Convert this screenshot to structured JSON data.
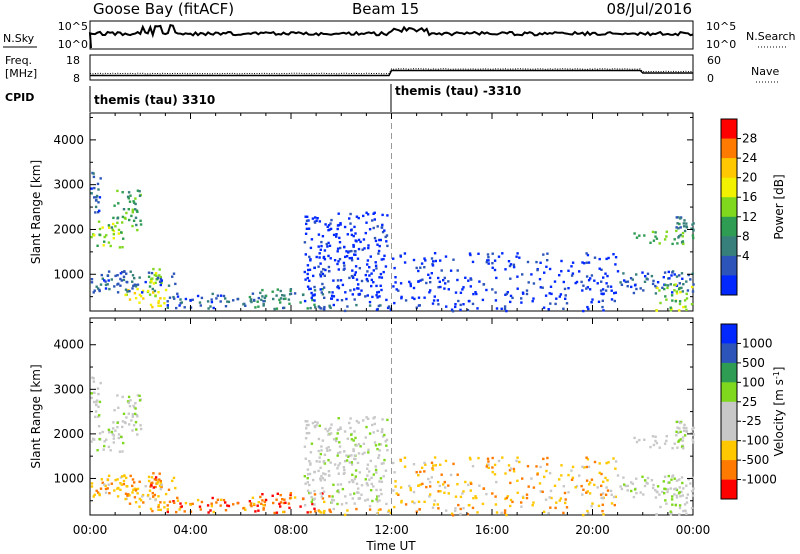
{
  "header": {
    "station": "Goose Bay (fitACF)",
    "beam": "Beam 15",
    "date": "08/Jul/2016"
  },
  "summary_panels": {
    "nsky_label": "N.Sky",
    "nsearch_label": "N.Search",
    "freq_label_line1": "Freq.",
    "freq_label_line2": "[MHz]",
    "nave_label": "Nave",
    "cpid_label": "CPID",
    "noise_ticks": [
      "10^5",
      "10^0"
    ],
    "freq_ticks": [
      "18",
      "8"
    ],
    "nave_ticks": [
      "60",
      "0"
    ],
    "cpid_segments": [
      {
        "label": "themis (tau) 3310",
        "start_hour": 0
      },
      {
        "label": "themis (tau) -3310",
        "start_hour": 12
      }
    ]
  },
  "chart_data": [
    {
      "type": "heatmap",
      "name": "power",
      "xlabel": "",
      "ylabel": "Slant Range [km]",
      "xlim": [
        0,
        24
      ],
      "ylim": [
        180,
        4600
      ],
      "yticks": [
        1000,
        2000,
        3000,
        4000
      ],
      "colorbar_label": "Power [dB]",
      "colorbar_ticks": [
        "28",
        "24",
        "20",
        "16",
        "12",
        "8",
        "4"
      ],
      "colorbar_colors": [
        "#ff0000",
        "#ff7a00",
        "#ffc800",
        "#f2f200",
        "#7fd81e",
        "#2e9c52",
        "#367f7a",
        "#2d55b9",
        "#0028ff"
      ],
      "clusters": [
        {
          "t0": 0.0,
          "t1": 1.3,
          "r0": 1600,
          "r1": 2200,
          "level": 4
        },
        {
          "t0": 0.8,
          "t1": 2.0,
          "r0": 2000,
          "r1": 2900,
          "level": 3
        },
        {
          "t0": 0.0,
          "t1": 0.4,
          "r0": 2400,
          "r1": 3300,
          "level": 1
        },
        {
          "t0": 2.3,
          "t1": 2.8,
          "r0": 750,
          "r1": 1150,
          "level": 4
        },
        {
          "t0": 1.3,
          "t1": 3.0,
          "r0": 250,
          "r1": 700,
          "level": 5
        },
        {
          "t0": 0.0,
          "t1": 3.5,
          "r0": 600,
          "r1": 1100,
          "level": 1
        },
        {
          "t0": 3.0,
          "t1": 6.0,
          "r0": 250,
          "r1": 600,
          "level": 1
        },
        {
          "t0": 6.0,
          "t1": 9.5,
          "r0": 250,
          "r1": 700,
          "level": 2
        },
        {
          "t0": 9.0,
          "t1": 12.0,
          "r0": 200,
          "r1": 350,
          "level": 1
        },
        {
          "t0": 8.5,
          "t1": 11.8,
          "r0": 400,
          "r1": 2400,
          "level": 0
        },
        {
          "t0": 12.0,
          "t1": 21.0,
          "r0": 200,
          "r1": 1500,
          "level": 0
        },
        {
          "t0": 21.5,
          "t1": 24.0,
          "r0": 1700,
          "r1": 2000,
          "level": 3
        },
        {
          "t0": 23.3,
          "t1": 24.0,
          "r0": 2000,
          "r1": 2300,
          "level": 2
        },
        {
          "t0": 21.0,
          "t1": 24.0,
          "r0": 600,
          "r1": 1100,
          "level": 1
        },
        {
          "t0": 22.5,
          "t1": 24.0,
          "r0": 200,
          "r1": 800,
          "level": 4
        }
      ]
    },
    {
      "type": "heatmap",
      "name": "velocity",
      "xlabel": "Time UT",
      "ylabel": "Slant Range [km]",
      "xlim": [
        0,
        24
      ],
      "ylim": [
        180,
        4600
      ],
      "xticks": [
        "00:00",
        "04:00",
        "08:00",
        "12:00",
        "16:00",
        "20:00",
        "00:00"
      ],
      "yticks": [
        1000,
        2000,
        3000,
        4000
      ],
      "colorbar_label": "Velocity [m s",
      "colorbar_label_sup": "-1",
      "colorbar_label_end": "]",
      "colorbar_ticks": [
        "1000",
        "500",
        "100",
        "25",
        "-25",
        "-100",
        "-500",
        "-1000"
      ],
      "colorbar_colors": [
        "#0028ff",
        "#2d55b9",
        "#2e9c52",
        "#7fd81e",
        "#c8c8c8",
        "#c8c8c8",
        "#ffc800",
        "#ff7a00",
        "#ff0000"
      ],
      "clusters": [
        {
          "t0": 0.0,
          "t1": 1.3,
          "r0": 1600,
          "r1": 2200,
          "level": 4
        },
        {
          "t0": 0.8,
          "t1": 2.0,
          "r0": 2000,
          "r1": 2900,
          "level": 4
        },
        {
          "t0": 0.0,
          "t1": 0.4,
          "r0": 2400,
          "r1": 3300,
          "level": 4
        },
        {
          "t0": 2.3,
          "t1": 2.8,
          "r0": 750,
          "r1": 1150,
          "level": 7
        },
        {
          "t0": 1.3,
          "t1": 3.0,
          "r0": 250,
          "r1": 700,
          "level": 6
        },
        {
          "t0": 0.0,
          "t1": 3.5,
          "r0": 600,
          "r1": 1100,
          "level": 6
        },
        {
          "t0": 3.0,
          "t1": 6.0,
          "r0": 250,
          "r1": 600,
          "level": 7
        },
        {
          "t0": 6.0,
          "t1": 9.5,
          "r0": 250,
          "r1": 700,
          "level": 7
        },
        {
          "t0": 9.0,
          "t1": 12.0,
          "r0": 200,
          "r1": 350,
          "level": 6
        },
        {
          "t0": 8.5,
          "t1": 11.8,
          "r0": 400,
          "r1": 2400,
          "level": 4
        },
        {
          "t0": 12.0,
          "t1": 21.0,
          "r0": 200,
          "r1": 1500,
          "level": 6
        },
        {
          "t0": 21.5,
          "t1": 24.0,
          "r0": 1700,
          "r1": 2000,
          "level": 4
        },
        {
          "t0": 23.3,
          "t1": 24.0,
          "r0": 2000,
          "r1": 2300,
          "level": 4
        },
        {
          "t0": 21.0,
          "t1": 24.0,
          "r0": 600,
          "r1": 1100,
          "level": 4
        },
        {
          "t0": 22.5,
          "t1": 24.0,
          "r0": 200,
          "r1": 800,
          "level": 4
        }
      ]
    }
  ]
}
